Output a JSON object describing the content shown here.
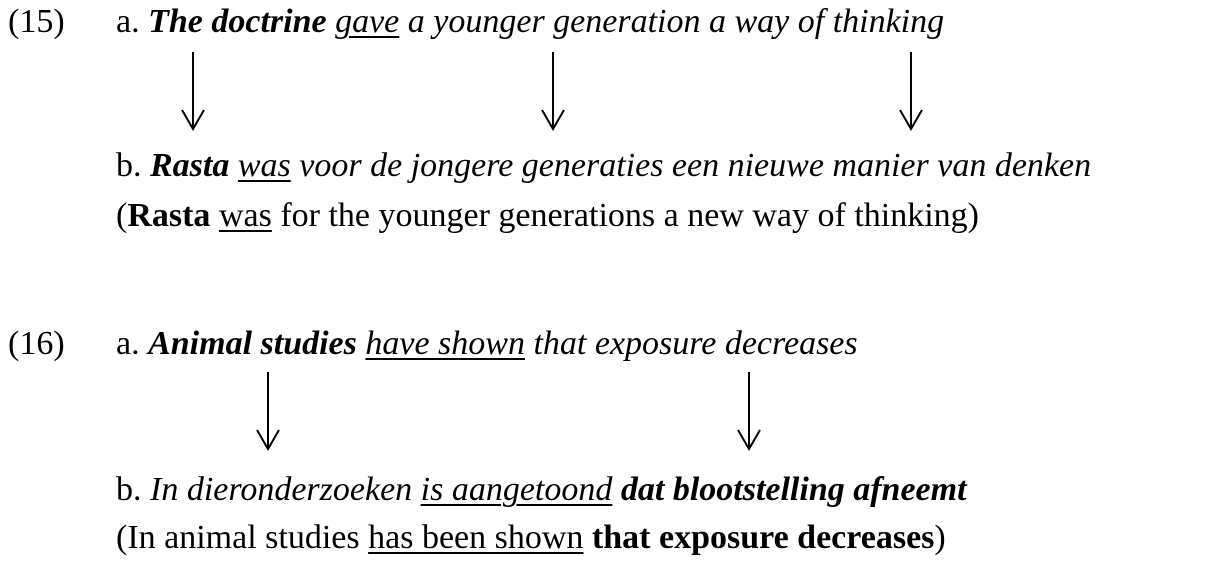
{
  "ex15": {
    "number": "(15)",
    "a": {
      "label": "a. ",
      "subject": "The doctrine",
      "verb": "gave",
      "rest": " a younger generation a way of thinking"
    },
    "b": {
      "label": "b. ",
      "subject": "Rasta",
      "verb": "was",
      "rest": " voor de jongere generaties een nieuwe manier van denken"
    },
    "gloss": {
      "open": "(",
      "subject": "Rasta",
      "verb": "was",
      "rest": " for the younger generations a new way of thinking)"
    }
  },
  "ex16": {
    "number": "(16)",
    "a": {
      "label": "a. ",
      "subject": "Animal studies",
      "verb": "have shown",
      "rest": " that exposure decreases"
    },
    "b": {
      "label": "b. ",
      "pre": "In dieronderzoeken ",
      "verb": "is aangetoond",
      "clause": " dat blootstelling afneemt"
    },
    "gloss": {
      "pre": "(In animal studies ",
      "verb": "has been shown",
      "clause": " that exposure decreases",
      "close": ")"
    }
  }
}
